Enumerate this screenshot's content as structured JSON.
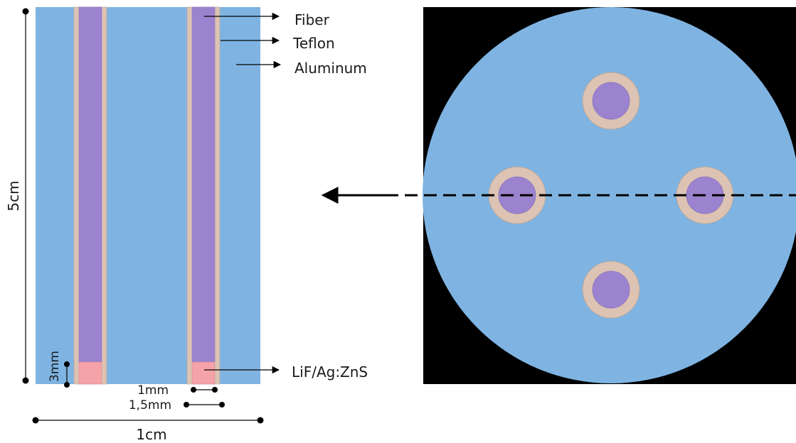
{
  "labels": {
    "fiber": "Fiber",
    "teflon": "Teflon",
    "aluminum": "Aluminum",
    "scintillator": "LiF/Ag:ZnS"
  },
  "dimensions": {
    "height": "5cm",
    "width": "1cm",
    "scintillator_height": "3mm",
    "fiber_diameter": "1mm",
    "teflon_diameter": "1,5mm"
  },
  "colors": {
    "aluminum": "#7fb4e2",
    "teflon": "#dcc3b3",
    "fiber": "#9b83cf",
    "scintillator": "#f5a3a8",
    "background_square": "#000000",
    "line": "#000000"
  }
}
